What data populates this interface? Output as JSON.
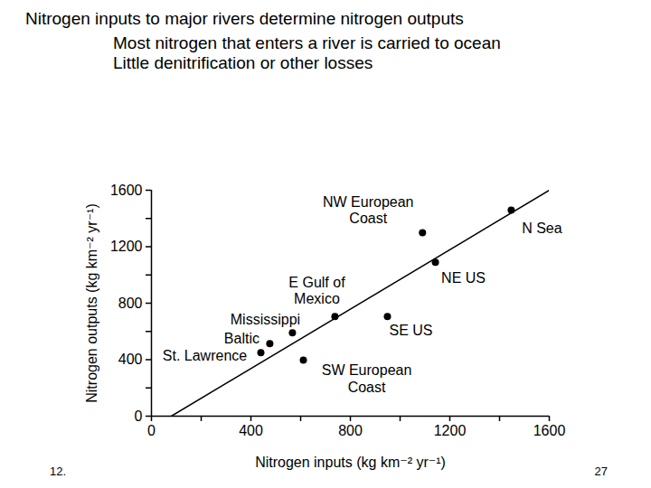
{
  "chart_data": {
    "type": "scatter",
    "title": "Nitrogen inputs to major rivers determine nitrogen outputs",
    "subtitle": [
      "Most nitrogen that enters a river is carried to ocean",
      "Little denitrification or other losses"
    ],
    "x_label": "Nitrogen inputs (kg km⁻² yr⁻¹)",
    "y_label": "Nitrogen outputs (kg km⁻² yr⁻¹)",
    "labels": [
      "NW European\nCoast",
      "N Sea",
      "NE US",
      "E Gulf of\nMexico",
      "Mississippi",
      "Baltic",
      "St. Lawrence",
      "SE US",
      "SW European\nCoast"
    ],
    "x": [
      1090,
      1447,
      1142,
      738,
      567,
      476,
      440,
      949,
      611
    ],
    "values": [
      1300,
      1460,
      1090,
      705,
      590,
      513,
      449,
      705,
      397
    ],
    "color": "#000000",
    "marker": "circle",
    "trend_line": {
      "x": [
        80,
        1600
      ],
      "y": [
        0,
        1600
      ]
    },
    "xlim": [
      0,
      1600
    ],
    "ylim": [
      0,
      1600
    ],
    "xticks": [
      0,
      400,
      800,
      1200,
      1600
    ],
    "yticks": [
      0,
      400,
      800,
      1200,
      1600
    ],
    "grid": false,
    "annotations": [
      "12.",
      "27"
    ]
  }
}
